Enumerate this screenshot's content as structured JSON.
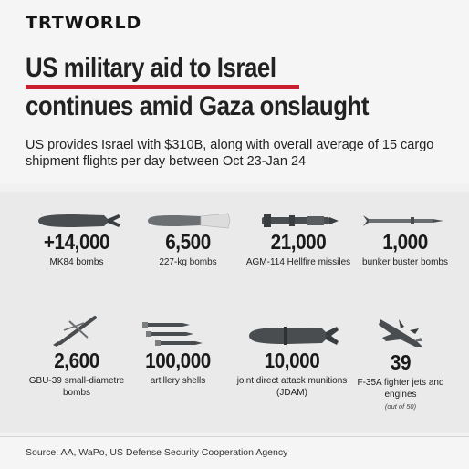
{
  "brand": {
    "logo": "TRTWORLD"
  },
  "headline": {
    "line1": "US military aid to Israel",
    "line2": "continues amid Gaza onslaught"
  },
  "subtitle": "US provides Israel with $310B, along with overall average of 15 cargo shipment flights per day between Oct 23-Jan 24",
  "items": [
    {
      "value": "+14,000",
      "label": "MK84 bombs",
      "icon": "mk84-bomb-icon"
    },
    {
      "value": "6,500",
      "label": "227-kg bombs",
      "icon": "227kg-bomb-icon"
    },
    {
      "value": "21,000",
      "label": "AGM-114 Hellfire missiles",
      "icon": "hellfire-missile-icon"
    },
    {
      "value": "1,000",
      "label": "bunker buster bombs",
      "icon": "bunker-buster-icon"
    },
    {
      "value": "2,600",
      "label": "GBU-39 small-diametre bombs",
      "icon": "gbu39-bomb-icon"
    },
    {
      "value": "100,000",
      "label": "artillery shells",
      "icon": "artillery-shells-icon"
    },
    {
      "value": "10,000",
      "label": "joint direct attack munitions (JDAM)",
      "icon": "jdam-icon"
    },
    {
      "value": "39",
      "label": "F-35A fighter jets and engines",
      "note": "(out of 50)",
      "icon": "f35-jet-icon"
    }
  ],
  "footer": {
    "source": "Source: AA, WaPo, US Defense Security Cooperation Agency"
  },
  "colors": {
    "accent": "#c8202e",
    "ordnance": "#4a4d50"
  }
}
